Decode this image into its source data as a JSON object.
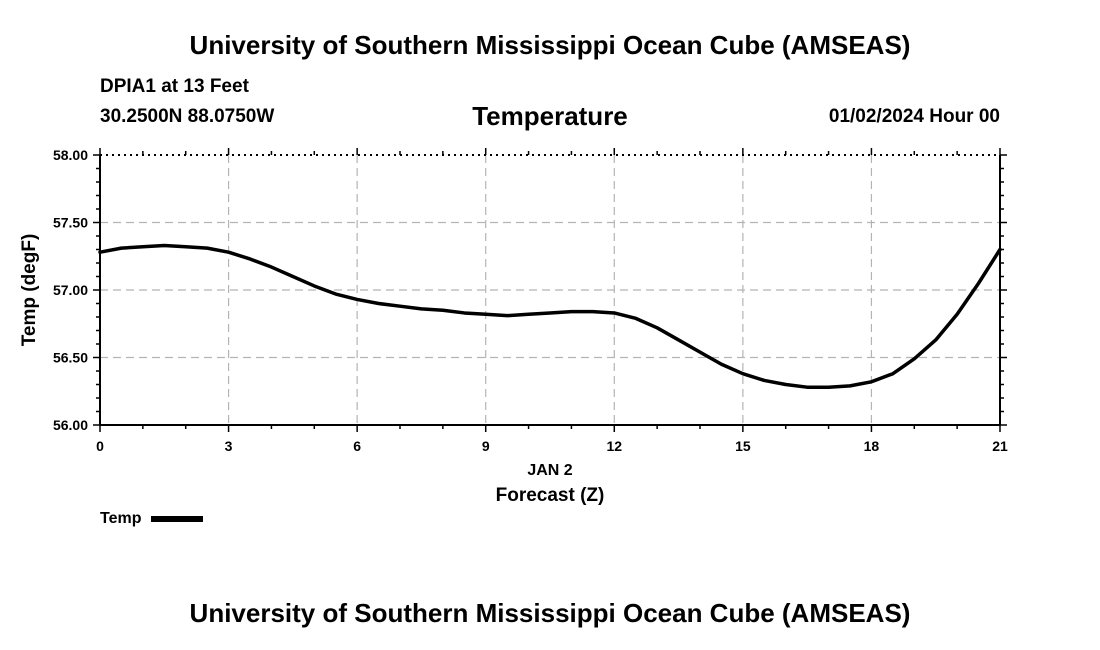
{
  "header": {
    "title": "University of Southern Mississippi Ocean Cube (AMSEAS)",
    "station": "DPIA1 at 13 Feet",
    "coordinates": "30.2500N  88.0750W",
    "chart_title": "Temperature",
    "datetime": "01/02/2024 Hour 00"
  },
  "footer": {
    "title": "University of Southern Mississippi Ocean Cube (AMSEAS)"
  },
  "legend": {
    "label": "Temp",
    "color": "#000000"
  },
  "chart_data": {
    "type": "line",
    "title": "Temperature",
    "xlabel": "Forecast (Z)",
    "xlabel_date": "JAN 2",
    "ylabel": "Temp (degF)",
    "xlim": [
      0,
      21
    ],
    "ylim": [
      56.0,
      58.0
    ],
    "xticks": [
      0,
      3,
      6,
      9,
      12,
      15,
      18,
      21
    ],
    "xtick_labels": [
      "0",
      "3",
      "6",
      "9",
      "12",
      "15",
      "18",
      "21"
    ],
    "yticks": [
      56.0,
      56.5,
      57.0,
      57.5,
      58.0
    ],
    "ytick_labels": [
      "56.00",
      "56.50",
      "57.00",
      "57.50",
      "58.00"
    ],
    "grid": true,
    "series": [
      {
        "name": "Temp",
        "color": "#000000",
        "x": [
          0,
          0.5,
          1,
          1.5,
          2,
          2.5,
          3,
          3.5,
          4,
          4.5,
          5,
          5.5,
          6,
          6.5,
          7,
          7.5,
          8,
          8.5,
          9,
          9.5,
          10,
          10.5,
          11,
          11.5,
          12,
          12.5,
          13,
          13.5,
          14,
          14.5,
          15,
          15.5,
          16,
          16.5,
          17,
          17.5,
          18,
          18.5,
          19,
          19.5,
          20,
          20.5,
          21
        ],
        "values": [
          57.28,
          57.31,
          57.32,
          57.33,
          57.32,
          57.31,
          57.28,
          57.23,
          57.17,
          57.1,
          57.03,
          56.97,
          56.93,
          56.9,
          56.88,
          56.86,
          56.85,
          56.83,
          56.82,
          56.81,
          56.82,
          56.83,
          56.84,
          56.84,
          56.83,
          56.79,
          56.72,
          56.63,
          56.54,
          56.45,
          56.38,
          56.33,
          56.3,
          56.28,
          56.28,
          56.29,
          56.32,
          56.38,
          56.49,
          56.63,
          56.82,
          57.05,
          57.3
        ]
      }
    ]
  }
}
